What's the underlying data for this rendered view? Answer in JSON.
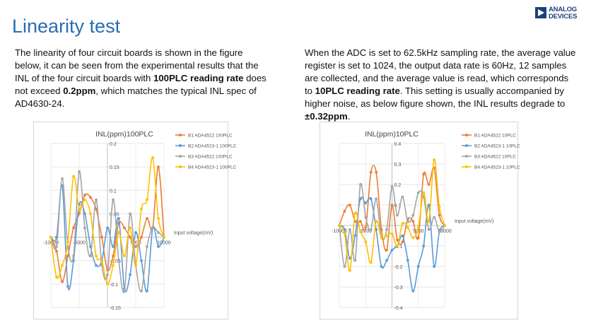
{
  "header": {
    "title": "Linearity test",
    "logo": {
      "line1": "ANALOG",
      "line2": "DEVICES"
    }
  },
  "left_text": {
    "p1": "The linearity of four circuit boards is shown in the figure below, it can be seen from the experimental results that the INL of the four circuit boards with ",
    "b1": "100PLC reading rate",
    "p2": " does not exceed ",
    "b2": "0.2ppm",
    "p3": ", which matches the typical INL spec of AD4630-24."
  },
  "right_text": {
    "p1": "When the ADC is set to 62.5kHz sampling rate, the average value register is set to 1024, the output data rate is 60Hz, 12 samples are collected, and the average value is read, which corresponds to ",
    "b1": "10PLC reading rate",
    "p2": ". This setting is usually accompanied by higher noise, as below figure shown, the INL results degrade to ",
    "b2": "±0.32ppm",
    "p3": "."
  },
  "chart_data": [
    {
      "type": "line",
      "title": "INL(ppm)100PLC",
      "xlabel": "Input voltage(mV)",
      "ylabel": "",
      "xlim": [
        -10000,
        10000
      ],
      "ylim": [
        -0.15,
        0.2
      ],
      "xticks": [
        -10000,
        -5000,
        0,
        5000,
        10000
      ],
      "xtick_labels": [
        "-10000",
        "-5000",
        "0",
        "5000",
        "10000"
      ],
      "yticks": [
        -0.15,
        -0.1,
        -0.05,
        0.05,
        0.1,
        0.15,
        0.2
      ],
      "ytick_labels": [
        "-0.15",
        "-0.1",
        "-0.05",
        "0.05",
        "0.1",
        "0.15",
        "0.2"
      ],
      "grid": true,
      "legend_position": "top-right",
      "x": [
        -10000,
        -9000,
        -8000,
        -7000,
        -6000,
        -5000,
        -4000,
        -3000,
        -2000,
        -1000,
        0,
        1000,
        2000,
        3000,
        4000,
        5000,
        6000,
        7000,
        8000,
        9000,
        10000
      ],
      "series": [
        {
          "name": "B1 ADA4522 100PLC",
          "color": "#ed7d31",
          "values": [
            0,
            -0.03,
            -0.095,
            -0.04,
            0.02,
            0.05,
            0.09,
            0.085,
            0.06,
            0,
            -0.07,
            -0.04,
            0.03,
            0.02,
            0,
            -0.02,
            0,
            0.04,
            0.02,
            0.15,
            0
          ]
        },
        {
          "name": "B2 ADA4523-1 100PLC",
          "color": "#5b9bd5",
          "values": [
            0,
            0,
            0.11,
            -0.105,
            -0.05,
            0.07,
            0.05,
            -0.02,
            -0.06,
            -0.05,
            0.02,
            -0.02,
            0.04,
            -0.11,
            -0.08,
            0.01,
            -0.05,
            -0.115,
            0.02,
            -0.02,
            0
          ]
        },
        {
          "name": "B3 ADA4522 100PLC",
          "color": "#a5a5a5",
          "values": [
            0,
            -0.02,
            0.125,
            -0.02,
            -0.04,
            0.14,
            0.02,
            -0.04,
            0.08,
            -0.06,
            -0.08,
            0.08,
            -0.05,
            -0.115,
            0.05,
            -0.06,
            -0.115,
            -0.02,
            0.02,
            0.01,
            0
          ]
        },
        {
          "name": "B4 ADA4523-1 100PLC",
          "color": "#ffc000",
          "values": [
            0,
            -0.085,
            -0.06,
            -0.01,
            0.13,
            0.06,
            0.08,
            0.05,
            -0.04,
            -0.05,
            -0.1,
            -0.06,
            0.01,
            -0.04,
            0.02,
            -0.06,
            0.06,
            0.08,
            0.17,
            0.04,
            0
          ]
        }
      ]
    },
    {
      "type": "line",
      "title": "INL(ppm)10PLC",
      "xlabel": "Input voltage(mV)",
      "ylabel": "",
      "xlim": [
        -10000,
        10000
      ],
      "ylim": [
        -0.4,
        0.4
      ],
      "xticks": [
        -10000,
        -5000,
        0,
        5000,
        10000
      ],
      "xtick_labels": [
        "-10000",
        "-5000",
        "0",
        "5000",
        "10000"
      ],
      "yticks": [
        -0.4,
        -0.3,
        -0.2,
        -0.1,
        0.1,
        0.2,
        0.3,
        0.4
      ],
      "ytick_labels": [
        "-0.4",
        "-0.3",
        "-0.2",
        "-0.1",
        "0.1",
        "0.2",
        "0.3",
        "0.4"
      ],
      "grid": true,
      "legend_position": "top-right",
      "x": [
        -10000,
        -9000,
        -8000,
        -7000,
        -6000,
        -5000,
        -4000,
        -3000,
        -2000,
        -1000,
        0,
        1000,
        2000,
        3000,
        4000,
        5000,
        6000,
        7000,
        8000,
        9000,
        10000
      ],
      "series": [
        {
          "name": "B1 ADA4522 10PLC",
          "color": "#ed7d31",
          "values": [
            0,
            0.07,
            0.1,
            0.02,
            0.02,
            -0.01,
            0.26,
            0.26,
            -0.02,
            -0.12,
            0.1,
            -0.07,
            -0.08,
            0.03,
            0.02,
            -0.06,
            0.25,
            0.2,
            0.28,
            0.05,
            0
          ]
        },
        {
          "name": "B2 ADA4523-1 10PLC",
          "color": "#5b9bd5",
          "values": [
            0,
            -0.02,
            -0.16,
            -0.05,
            0.13,
            0.11,
            0.13,
            -0.02,
            -0.2,
            -0.17,
            -0.12,
            -0.1,
            -0.05,
            -0.17,
            -0.32,
            -0.2,
            -0.1,
            0.1,
            -0.2,
            -0.03,
            0
          ]
        },
        {
          "name": "B3 ADA4522 10PLC",
          "color": "#a5a5a5",
          "values": [
            0,
            -0.2,
            -0.02,
            -0.17,
            0.2,
            0.04,
            -0.02,
            0.13,
            -0.06,
            -0.02,
            0.19,
            0.05,
            0.14,
            0.02,
            0.05,
            0.16,
            0.14,
            -0.02,
            0.04,
            -0.03,
            0
          ]
        },
        {
          "name": "B4 ADA4523-1 10PLC",
          "color": "#ffc000",
          "values": [
            0,
            -0.04,
            -0.22,
            0.06,
            -0.03,
            -0.08,
            -0.18,
            0.02,
            -0.06,
            -0.05,
            -0.04,
            -0.1,
            0.01,
            -0.01,
            -0.06,
            -0.01,
            0.16,
            0.02,
            0.32,
            0.09,
            0
          ]
        }
      ]
    }
  ]
}
